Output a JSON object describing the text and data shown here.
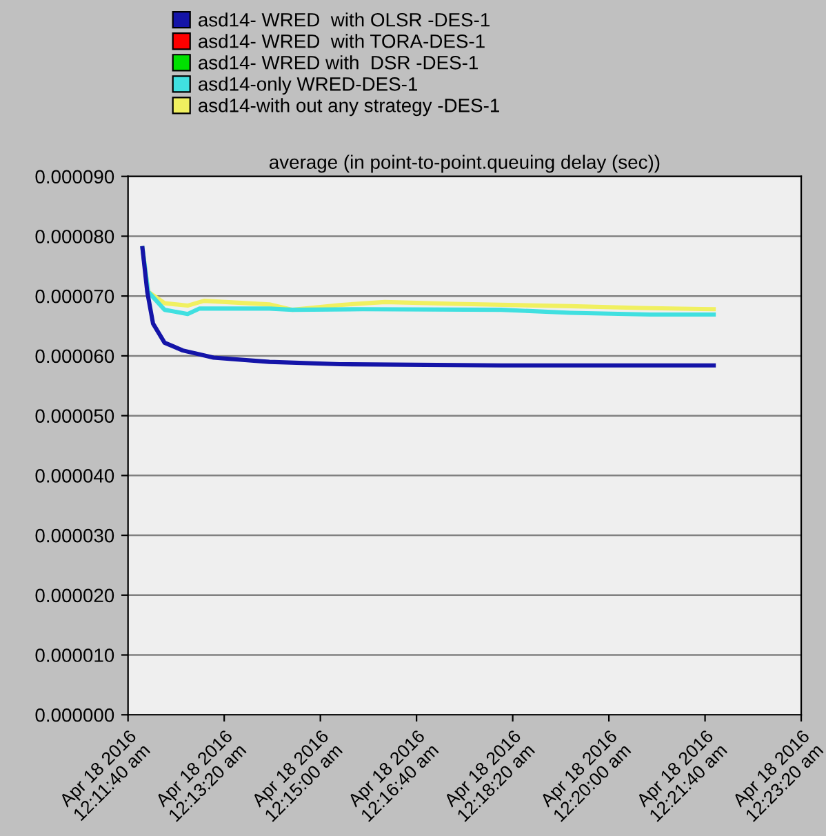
{
  "chart_data": {
    "type": "line",
    "title": "average (in point-to-point.queuing delay (sec))",
    "xlim": [
      "2016-04-18T00:11:40",
      "2016-04-18T00:23:20"
    ],
    "xticks": [
      {
        "value": "2016-04-18T00:11:40",
        "label": "Apr 18 2016\n12:11:40 am"
      },
      {
        "value": "2016-04-18T00:13:20",
        "label": "Apr 18 2016\n12:13:20 am"
      },
      {
        "value": "2016-04-18T00:15:00",
        "label": "Apr 18 2016\n12:15:00 am"
      },
      {
        "value": "2016-04-18T00:16:40",
        "label": "Apr 18 2016\n12:16:40 am"
      },
      {
        "value": "2016-04-18T00:18:20",
        "label": "Apr 18 2016\n12:18:20 am"
      },
      {
        "value": "2016-04-18T00:20:00",
        "label": "Apr 18 2016\n12:20:00 am"
      },
      {
        "value": "2016-04-18T00:21:40",
        "label": "Apr 18 2016\n12:21:40 am"
      },
      {
        "value": "2016-04-18T00:23:20",
        "label": "Apr 18 2016\n12:23:20 am"
      }
    ],
    "ylim": [
      0,
      9e-05
    ],
    "yticks": [
      {
        "value": 0,
        "label": "0.000000"
      },
      {
        "value": 1e-05,
        "label": "0.000010"
      },
      {
        "value": 2e-05,
        "label": "0.000020"
      },
      {
        "value": 3e-05,
        "label": "0.000030"
      },
      {
        "value": 4e-05,
        "label": "0.000040"
      },
      {
        "value": 5e-05,
        "label": "0.000050"
      },
      {
        "value": 6e-05,
        "label": "0.000060"
      },
      {
        "value": 7e-05,
        "label": "0.000070"
      },
      {
        "value": 8e-05,
        "label": "0.000080"
      },
      {
        "value": 9e-05,
        "label": "0.000090"
      }
    ],
    "grid": "y",
    "legend": "top",
    "marker": "none",
    "line_style": "solid",
    "series": [
      {
        "name": "asd14- WRED  with OLSR -DES-1",
        "color": "#1414a8",
        "x": [
          "2016-04-18T00:11:55",
          "2016-04-18T00:12:00",
          "2016-04-18T00:12:06",
          "2016-04-18T00:12:18",
          "2016-04-18T00:12:37",
          "2016-04-18T00:13:09",
          "2016-04-18T00:14:07",
          "2016-04-18T00:15:20",
          "2016-04-18T00:18:08",
          "2016-04-18T00:21:49"
        ],
        "values": [
          7.8e-05,
          7.07e-05,
          6.54e-05,
          6.22e-05,
          6.09e-05,
          5.97e-05,
          5.9e-05,
          5.86e-05,
          5.84e-05,
          5.84e-05
        ]
      },
      {
        "name": "asd14- WRED  with TORA-DES-1",
        "color": "#ff0000"
      },
      {
        "name": "asd14- WRED with  DSR -DES-1",
        "color": "#00e000"
      },
      {
        "name": "asd14-only WRED-DES-1",
        "color": "#40e0e0",
        "x": [
          "2016-04-18T00:11:55",
          "2016-04-18T00:12:01",
          "2016-04-18T00:12:18",
          "2016-04-18T00:12:42",
          "2016-04-18T00:12:54",
          "2016-04-18T00:14:07",
          "2016-04-18T00:14:31",
          "2016-04-18T00:15:44",
          "2016-04-18T00:18:08",
          "2016-04-18T00:19:20",
          "2016-04-18T00:20:43",
          "2016-04-18T00:21:49"
        ],
        "values": [
          7.8e-05,
          7.07e-05,
          6.77e-05,
          6.7e-05,
          6.79e-05,
          6.79e-05,
          6.77e-05,
          6.78e-05,
          6.77e-05,
          6.72e-05,
          6.69e-05,
          6.69e-05
        ]
      },
      {
        "name": "asd14-with out any strategy -DES-1",
        "color": "#f0f060",
        "x": [
          "2016-04-18T00:11:55",
          "2016-04-18T00:12:01",
          "2016-04-18T00:12:18",
          "2016-04-18T00:12:42",
          "2016-04-18T00:12:59",
          "2016-04-18T00:14:07",
          "2016-04-18T00:14:31",
          "2016-04-18T00:15:20",
          "2016-04-18T00:16:07",
          "2016-04-18T00:17:20",
          "2016-04-18T00:19:20",
          "2016-04-18T00:20:33",
          "2016-04-18T00:21:49"
        ],
        "values": [
          7.8e-05,
          7.07e-05,
          6.88e-05,
          6.84e-05,
          6.92e-05,
          6.86e-05,
          6.77e-05,
          6.85e-05,
          6.9e-05,
          6.87e-05,
          6.83e-05,
          6.8e-05,
          6.78e-05
        ]
      }
    ]
  }
}
